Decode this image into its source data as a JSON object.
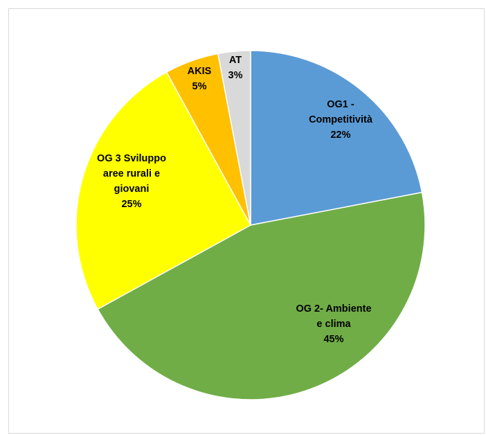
{
  "chart_data": {
    "type": "pie",
    "title": "",
    "start_angle_deg": 0,
    "direction": "clockwise",
    "slices": [
      {
        "name": "OG1 - Competitività",
        "value": 22,
        "percent_label": "22%",
        "label_lines": [
          "OG1 -",
          "Competitività",
          "22%"
        ],
        "color": "#5b9bd5"
      },
      {
        "name": "OG 2- Ambiente e clima",
        "value": 45,
        "percent_label": "45%",
        "label_lines": [
          "OG 2- Ambiente",
          "e clima",
          "45%"
        ],
        "color": "#70ad47"
      },
      {
        "name": "OG 3 Sviluppo aree rurali e giovani",
        "value": 25,
        "percent_label": "25%",
        "label_lines": [
          "OG 3 Sviluppo",
          "aree rurali  e",
          "giovani",
          "25%"
        ],
        "color": "#ffff00"
      },
      {
        "name": "AKIS",
        "value": 5,
        "percent_label": "5%",
        "label_lines": [
          "AKIS",
          "5%"
        ],
        "color": "#ffc000"
      },
      {
        "name": "AT",
        "value": 3,
        "percent_label": "3%",
        "label_lines": [
          "AT",
          "3%"
        ],
        "color": "#d9d9d9"
      }
    ]
  }
}
